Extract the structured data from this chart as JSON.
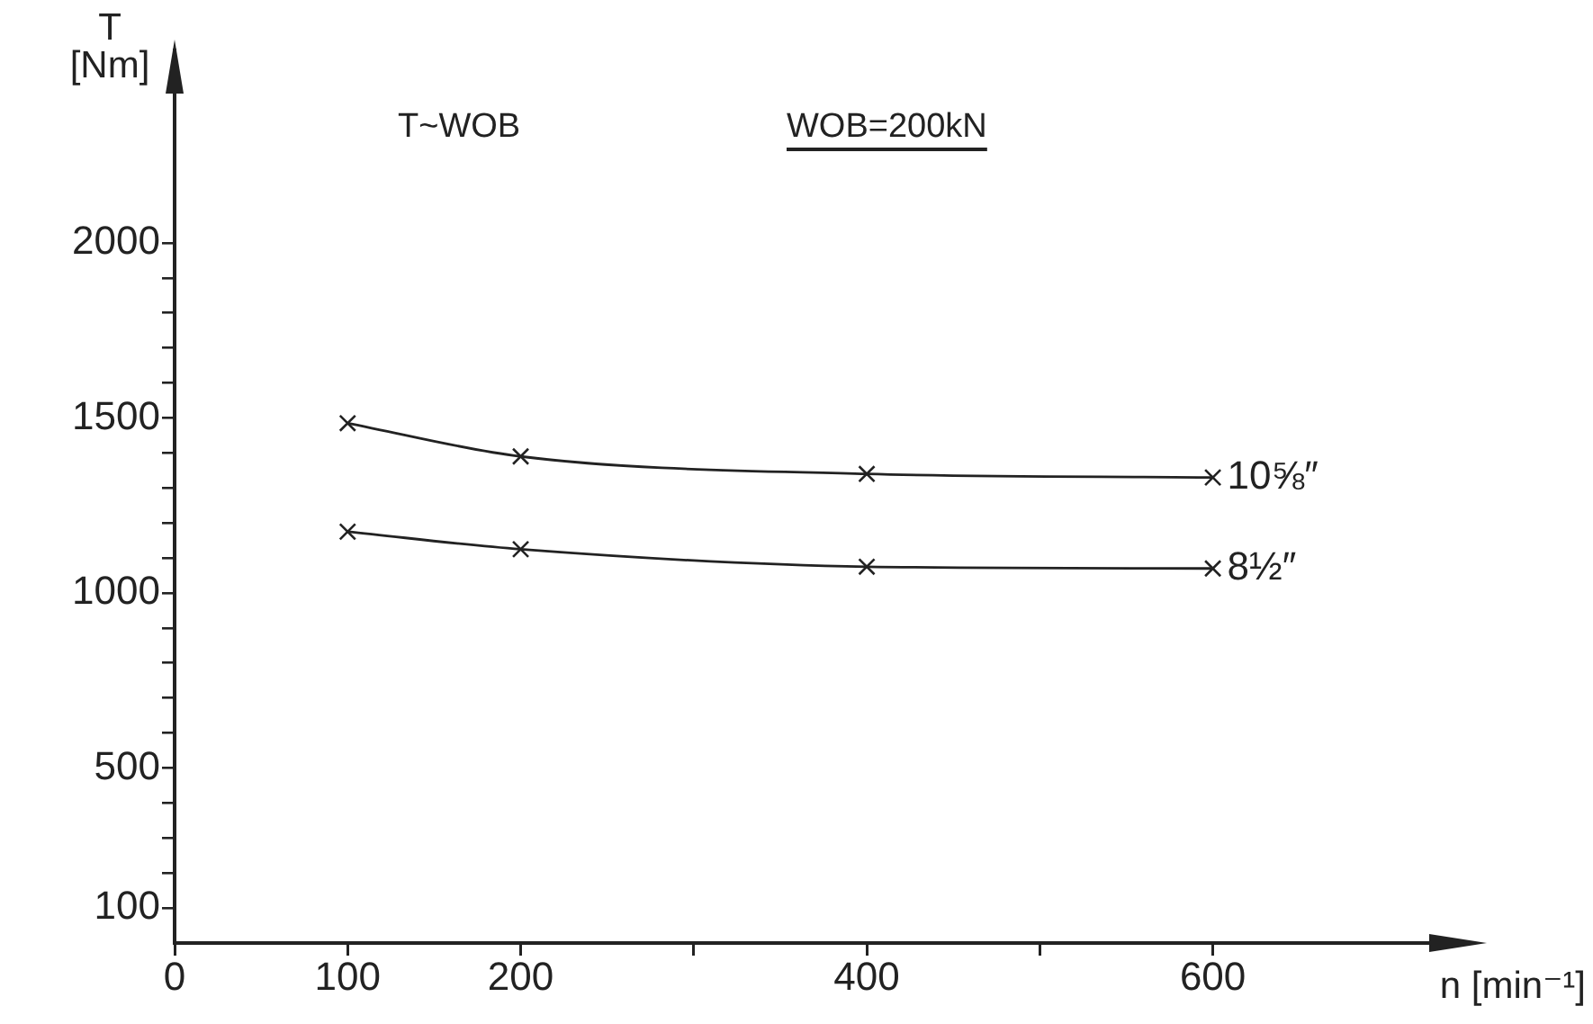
{
  "chart_data": {
    "type": "line",
    "xlabel": "n [min⁻¹]",
    "ylabel": "T [Nm]",
    "annotations": [
      "T~WOB",
      "WOB=200kN"
    ],
    "x": [
      100,
      200,
      400,
      600
    ],
    "series": [
      {
        "name": "10⅝″",
        "color": "#222222",
        "values": [
          1485,
          1390,
          1340,
          1330
        ]
      },
      {
        "name": "8½″",
        "color": "#222222",
        "values": [
          1175,
          1125,
          1075,
          1070
        ]
      }
    ],
    "xlim": [
      0,
      750
    ],
    "xticks": [
      0,
      100,
      200,
      {
        "value": 300,
        "label": null
      },
      400,
      {
        "value": 500,
        "label": null
      },
      600
    ],
    "ylim": [
      0,
      2550
    ],
    "yticks": [
      {
        "value": 100,
        "label": "100"
      },
      {
        "value": 200,
        "label": null
      },
      {
        "value": 300,
        "label": null
      },
      {
        "value": 400,
        "label": null
      },
      500,
      {
        "value": 600,
        "label": null
      },
      {
        "value": 700,
        "label": null
      },
      {
        "value": 800,
        "label": null
      },
      {
        "value": 900,
        "label": null
      },
      1000,
      {
        "value": 1100,
        "label": null
      },
      {
        "value": 1200,
        "label": null
      },
      {
        "value": 1300,
        "label": null
      },
      {
        "value": 1400,
        "label": null
      },
      1500,
      {
        "value": 1600,
        "label": null
      },
      {
        "value": 1700,
        "label": null
      },
      {
        "value": 1800,
        "label": null
      },
      {
        "value": 1900,
        "label": null
      },
      2000
    ],
    "grid": false,
    "legend": false,
    "marker": "cross",
    "line_style": "solid"
  }
}
